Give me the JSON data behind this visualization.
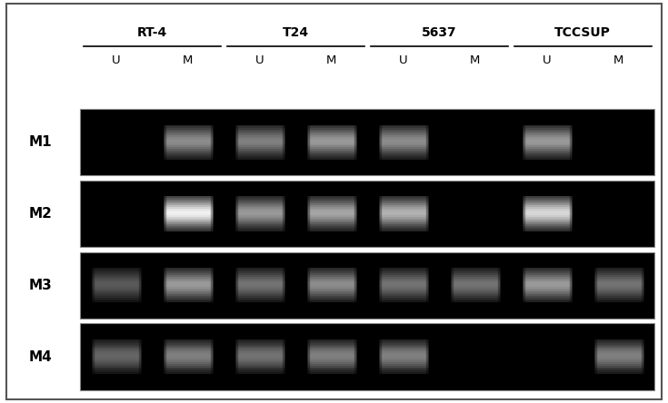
{
  "cell_lines": [
    "RT-4",
    "T24",
    "5637",
    "TCCSUP"
  ],
  "row_labels": [
    "M1",
    "M2",
    "M3",
    "M4"
  ],
  "col_labels": [
    "U",
    "M",
    "U",
    "M",
    "U",
    "M",
    "U",
    "M"
  ],
  "bg_color": "#000000",
  "outer_bg": "#e8e8e8",
  "panel_bg": "#ffffff",
  "band_data": {
    "M1": {
      "RT-4": {
        "U": 0.0,
        "M": 0.55
      },
      "T24": {
        "U": 0.5,
        "M": 0.6
      },
      "5637": {
        "U": 0.55,
        "M": 0.0
      },
      "TCCSUP": {
        "U": 0.6,
        "M": 0.0
      }
    },
    "M2": {
      "RT-4": {
        "U": 0.05,
        "M": 0.95
      },
      "T24": {
        "U": 0.6,
        "M": 0.65
      },
      "5637": {
        "U": 0.7,
        "M": 0.0
      },
      "TCCSUP": {
        "U": 0.85,
        "M": 0.0
      }
    },
    "M3": {
      "RT-4": {
        "U": 0.35,
        "M": 0.6
      },
      "T24": {
        "U": 0.45,
        "M": 0.55
      },
      "5637": {
        "U": 0.45,
        "M": 0.45
      },
      "TCCSUP": {
        "U": 0.6,
        "M": 0.45
      }
    },
    "M4": {
      "RT-4": {
        "U": 0.4,
        "M": 0.5
      },
      "T24": {
        "U": 0.45,
        "M": 0.5
      },
      "5637": {
        "U": 0.5,
        "M": 0.0
      },
      "TCCSUP": {
        "U": 0.0,
        "M": 0.5
      }
    }
  },
  "figure_width": 7.35,
  "figure_height": 4.44,
  "dpi": 100
}
